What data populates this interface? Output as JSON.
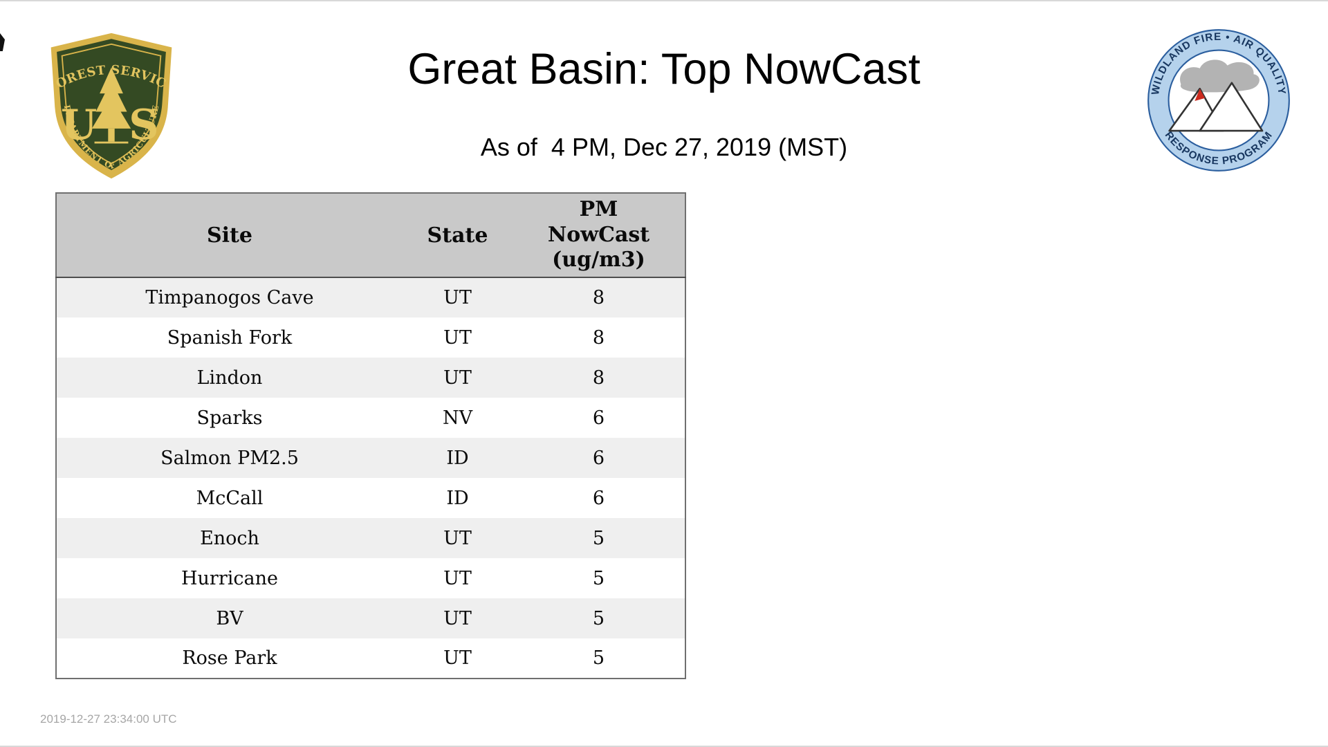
{
  "page": {
    "title": "Great Basin: Top NowCast",
    "subtitle": "As of  4 PM, Dec 27, 2019 (MST)",
    "footer_timestamp": "2019-12-27 23:34:00 UTC"
  },
  "logos": {
    "usfs": {
      "top_text": "FOREST SERVICE",
      "monogram_left": "U",
      "monogram_right": "S",
      "bottom_text": "DEPARTMENT OF AGRICULTURE",
      "colors": {
        "shield_green": "#344a23",
        "gold": "#e3c55f"
      }
    },
    "wfaqrp": {
      "top_text": "WILDLAND FIRE • AIR QUALITY",
      "bottom_text": "RESPONSE PROGRAM",
      "colors": {
        "ring_blue": "#b5d2ec",
        "line_blue": "#2b5e9e",
        "flame_red": "#cc2a1e"
      }
    }
  },
  "table": {
    "header_site": "Site",
    "header_state": "State",
    "header_pm_lines": [
      "PM",
      "NowCast",
      "(ug/m3)"
    ],
    "rows": [
      [
        "Timpanogos Cave",
        "UT",
        8
      ],
      [
        "Spanish Fork",
        "UT",
        8
      ],
      [
        "Lindon",
        "UT",
        8
      ],
      [
        "Sparks",
        "NV",
        6
      ],
      [
        "Salmon PM2.5",
        "ID",
        6
      ],
      [
        "McCall",
        "ID",
        6
      ],
      [
        "Enoch",
        "UT",
        5
      ],
      [
        "Hurricane",
        "UT",
        5
      ],
      [
        "BV",
        "UT",
        5
      ],
      [
        "Rose Park",
        "UT",
        5
      ]
    ],
    "colors": {
      "header_bg": "#c9c9c9",
      "row_alt_bg": "#efefef"
    }
  }
}
